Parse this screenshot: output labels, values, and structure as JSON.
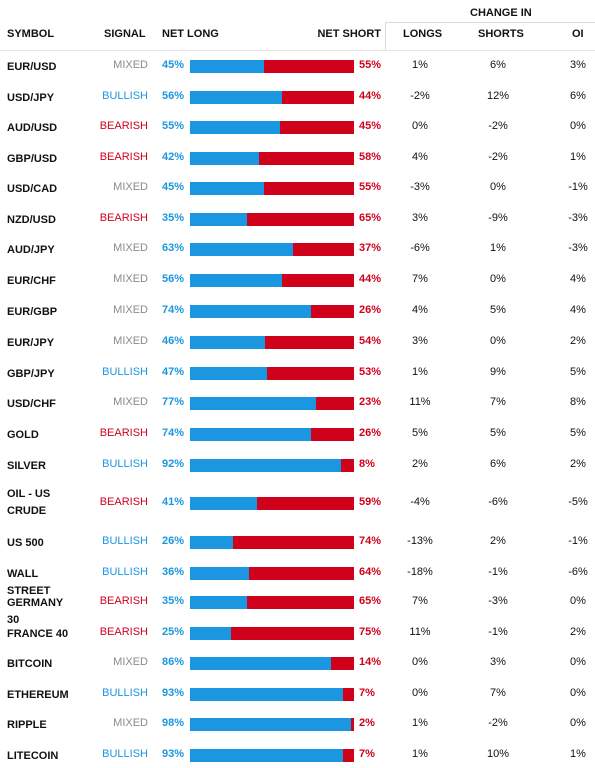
{
  "header": {
    "change_in": "CHANGE IN",
    "symbol": "SYMBOL",
    "signal": "SIGNAL",
    "net_long": "NET LONG",
    "net_short": "NET SHORT",
    "longs": "LONGS",
    "shorts": "SHORTS",
    "oi": "OI"
  },
  "colors": {
    "long": "#1b96e0",
    "short": "#d0021b",
    "mixed": "#8a8a8a"
  },
  "rows": [
    {
      "symbol": "EUR/USD",
      "signal": "MIXED",
      "net_long": "45%",
      "long_fraction": 0.45,
      "net_short": "55%",
      "longs": "1%",
      "shorts": "6%",
      "oi": "3%"
    },
    {
      "symbol": "USD/JPY",
      "signal": "BULLISH",
      "net_long": "56%",
      "long_fraction": 0.56,
      "net_short": "44%",
      "longs": "-2%",
      "shorts": "12%",
      "oi": "6%"
    },
    {
      "symbol": "AUD/USD",
      "signal": "BEARISH",
      "net_long": "55%",
      "long_fraction": 0.55,
      "net_short": "45%",
      "longs": "0%",
      "shorts": "-2%",
      "oi": "0%"
    },
    {
      "symbol": "GBP/USD",
      "signal": "BEARISH",
      "net_long": "42%",
      "long_fraction": 0.42,
      "net_short": "58%",
      "longs": "4%",
      "shorts": "-2%",
      "oi": "1%"
    },
    {
      "symbol": "USD/CAD",
      "signal": "MIXED",
      "net_long": "45%",
      "long_fraction": 0.45,
      "net_short": "55%",
      "longs": "-3%",
      "shorts": "0%",
      "oi": "-1%"
    },
    {
      "symbol": "NZD/USD",
      "signal": "BEARISH",
      "net_long": "35%",
      "long_fraction": 0.35,
      "net_short": "65%",
      "longs": "3%",
      "shorts": "-9%",
      "oi": "-3%"
    },
    {
      "symbol": "AUD/JPY",
      "signal": "MIXED",
      "net_long": "63%",
      "long_fraction": 0.63,
      "net_short": "37%",
      "longs": "-6%",
      "shorts": "1%",
      "oi": "-3%"
    },
    {
      "symbol": "EUR/CHF",
      "signal": "MIXED",
      "net_long": "56%",
      "long_fraction": 0.56,
      "net_short": "44%",
      "longs": "7%",
      "shorts": "0%",
      "oi": "4%"
    },
    {
      "symbol": "EUR/GBP",
      "signal": "MIXED",
      "net_long": "74%",
      "long_fraction": 0.74,
      "net_short": "26%",
      "longs": "4%",
      "shorts": "5%",
      "oi": "4%"
    },
    {
      "symbol": "EUR/JPY",
      "signal": "MIXED",
      "net_long": "46%",
      "long_fraction": 0.46,
      "net_short": "54%",
      "longs": "3%",
      "shorts": "0%",
      "oi": "2%"
    },
    {
      "symbol": "GBP/JPY",
      "signal": "BULLISH",
      "net_long": "47%",
      "long_fraction": 0.47,
      "net_short": "53%",
      "longs": "1%",
      "shorts": "9%",
      "oi": "5%"
    },
    {
      "symbol": "USD/CHF",
      "signal": "MIXED",
      "net_long": "77%",
      "long_fraction": 0.77,
      "net_short": "23%",
      "longs": "11%",
      "shorts": "7%",
      "oi": "8%"
    },
    {
      "symbol": "GOLD",
      "signal": "BEARISH",
      "net_long": "74%",
      "long_fraction": 0.74,
      "net_short": "26%",
      "longs": "5%",
      "shorts": "5%",
      "oi": "5%"
    },
    {
      "symbol": "SILVER",
      "signal": "BULLISH",
      "net_long": "92%",
      "long_fraction": 0.92,
      "net_short": "8%",
      "longs": "2%",
      "shorts": "6%",
      "oi": "2%"
    },
    {
      "symbol": "OIL - US CRUDE",
      "signal": "BEARISH",
      "net_long": "41%",
      "long_fraction": 0.41,
      "net_short": "59%",
      "longs": "-4%",
      "shorts": "-6%",
      "oi": "-5%"
    },
    {
      "symbol": "US 500",
      "signal": "BULLISH",
      "net_long": "26%",
      "long_fraction": 0.26,
      "net_short": "74%",
      "longs": "-13%",
      "shorts": "2%",
      "oi": "-1%"
    },
    {
      "symbol": "WALL STREET",
      "signal": "BULLISH",
      "net_long": "36%",
      "long_fraction": 0.36,
      "net_short": "64%",
      "longs": "-18%",
      "shorts": "-1%",
      "oi": "-6%"
    },
    {
      "symbol": "GERMANY 30",
      "signal": "BEARISH",
      "net_long": "35%",
      "long_fraction": 0.35,
      "net_short": "65%",
      "longs": "7%",
      "shorts": "-3%",
      "oi": "0%"
    },
    {
      "symbol": "FRANCE 40",
      "signal": "BEARISH",
      "net_long": "25%",
      "long_fraction": 0.25,
      "net_short": "75%",
      "longs": "11%",
      "shorts": "-1%",
      "oi": "2%"
    },
    {
      "symbol": "BITCOIN",
      "signal": "MIXED",
      "net_long": "86%",
      "long_fraction": 0.86,
      "net_short": "14%",
      "longs": "0%",
      "shorts": "3%",
      "oi": "0%"
    },
    {
      "symbol": "ETHEREUM",
      "signal": "BULLISH",
      "net_long": "93%",
      "long_fraction": 0.93,
      "net_short": "7%",
      "longs": "0%",
      "shorts": "7%",
      "oi": "0%"
    },
    {
      "symbol": "RIPPLE",
      "signal": "MIXED",
      "net_long": "98%",
      "long_fraction": 0.98,
      "net_short": "2%",
      "longs": "1%",
      "shorts": "-2%",
      "oi": "0%"
    },
    {
      "symbol": "LITECOIN",
      "signal": "BULLISH",
      "net_long": "93%",
      "long_fraction": 0.93,
      "net_short": "7%",
      "longs": "1%",
      "shorts": "10%",
      "oi": "1%"
    }
  ]
}
